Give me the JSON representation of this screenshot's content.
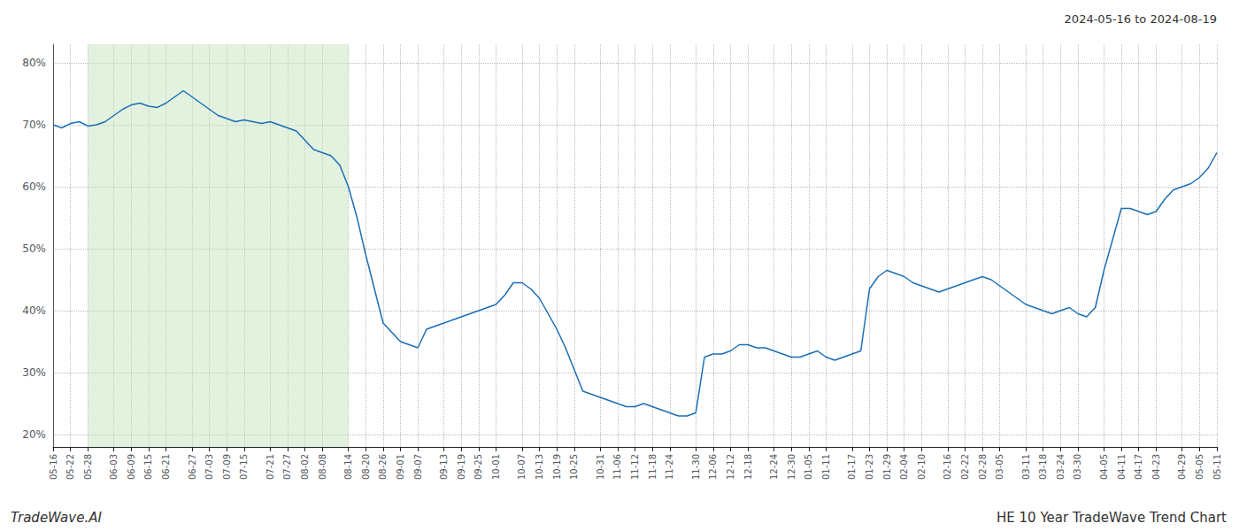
{
  "chart_data": {
    "type": "line",
    "title": "2024-05-16 to 2024-08-19",
    "annotations": [
      "TradeWave.AI",
      "HE 10 Year TradeWave Trend Chart"
    ],
    "categories": [
      "05-16",
      null,
      "05-22",
      null,
      "05-28",
      null,
      null,
      "06-03",
      null,
      "06-09",
      null,
      "06-15",
      null,
      "06-21",
      null,
      null,
      "06-27",
      null,
      "07-03",
      null,
      "07-09",
      null,
      "07-15",
      null,
      null,
      "07-21",
      null,
      "07-27",
      null,
      "08-02",
      null,
      "08-08",
      null,
      null,
      "08-14",
      null,
      "08-20",
      null,
      "08-26",
      null,
      "09-01",
      null,
      "09-07",
      null,
      null,
      "09-13",
      null,
      "09-19",
      null,
      "09-25",
      null,
      "10-01",
      null,
      null,
      "10-07",
      null,
      "10-13",
      null,
      "10-19",
      null,
      "10-25",
      null,
      null,
      "10-31",
      null,
      "11-06",
      null,
      "11-12",
      null,
      "11-18",
      null,
      "11-24",
      null,
      null,
      "11-30",
      null,
      "12-06",
      null,
      "12-12",
      null,
      "12-18",
      null,
      null,
      "12-24",
      null,
      "12-30",
      null,
      "01-05",
      null,
      "01-11",
      null,
      null,
      "01-17",
      null,
      "01-23",
      null,
      "01-29",
      null,
      "02-04",
      null,
      "02-10",
      null,
      null,
      "02-16",
      null,
      "02-22",
      null,
      "02-28",
      null,
      "03-05",
      null,
      null,
      "03-11",
      null,
      "03-18",
      null,
      "03-24",
      null,
      "03-30",
      null,
      null,
      "04-05",
      null,
      "04-11",
      null,
      "04-17",
      null,
      "04-23",
      null,
      null,
      "04-29",
      null,
      "05-05",
      null,
      "05-11"
    ],
    "values": [
      70.0,
      69.5,
      70.2,
      70.5,
      69.8,
      70.0,
      70.5,
      71.5,
      72.5,
      73.2,
      73.5,
      73.0,
      72.8,
      73.5,
      74.5,
      75.5,
      74.5,
      73.5,
      72.5,
      71.5,
      71.0,
      70.5,
      70.8,
      70.5,
      70.2,
      70.5,
      70.0,
      69.5,
      69.0,
      67.5,
      66.0,
      65.5,
      65.0,
      63.5,
      60.0,
      55.0,
      49.0,
      43.5,
      38.0,
      36.5,
      35.0,
      34.5,
      34.0,
      37.0,
      37.5,
      38.0,
      38.5,
      39.0,
      39.5,
      40.0,
      40.5,
      41.0,
      42.5,
      44.5,
      44.5,
      43.5,
      42.0,
      39.5,
      37.0,
      34.0,
      30.5,
      27.0,
      26.5,
      26.0,
      25.5,
      25.0,
      24.5,
      24.5,
      25.0,
      24.5,
      24.0,
      23.5,
      23.0,
      23.0,
      23.5,
      32.5,
      33.0,
      33.0,
      33.5,
      34.5,
      34.5,
      34.0,
      34.0,
      33.5,
      33.0,
      32.5,
      32.5,
      33.0,
      33.5,
      32.5,
      32.0,
      32.5,
      33.0,
      33.5,
      43.5,
      45.5,
      46.5,
      46.0,
      45.5,
      44.5,
      44.0,
      43.5,
      43.0,
      43.5,
      44.0,
      44.5,
      45.0,
      45.5,
      45.0,
      44.0,
      43.0,
      42.0,
      41.0,
      40.5,
      40.0,
      39.5,
      40.0,
      40.5,
      39.5,
      39.0,
      40.5,
      46.5,
      51.5,
      56.5,
      56.5,
      56.0,
      55.5,
      56.0,
      58.0,
      59.5,
      60.0,
      60.5,
      61.5,
      63.0,
      65.5
    ],
    "color": "#1a6eb5",
    "shading": {
      "from": "05-28",
      "to": "08-14",
      "color": "#c8e6c0"
    },
    "ylim": [
      18,
      83
    ],
    "yticks": [
      {
        "value": 20,
        "label": "20%"
      },
      {
        "value": 30,
        "label": "30%"
      },
      {
        "value": 40,
        "label": "40%"
      },
      {
        "value": 50,
        "label": "50%"
      },
      {
        "value": 60,
        "label": "60%"
      },
      {
        "value": 70,
        "label": "70%"
      },
      {
        "value": 80,
        "label": "80%"
      }
    ],
    "grid": true
  }
}
